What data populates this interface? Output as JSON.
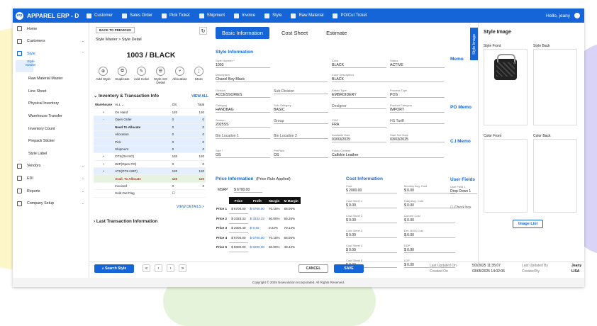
{
  "app": {
    "name": "APPAREL ERP",
    "env": "D",
    "logo": "erp",
    "user": "Hello, jeany"
  },
  "nav": [
    "Customer",
    "Sales Order",
    "Pick Ticket",
    "Shipment",
    "Invoice",
    "Style",
    "Raw Material",
    "PO/Cut Ticket"
  ],
  "sidebar": {
    "home": "Home",
    "customers": "Customers",
    "style": "Style",
    "style_items": [
      "Style Master",
      "Raw Material Master",
      "Line Sheet",
      "Physical Inventory",
      "Warehouse Transfer",
      "Inventory Count",
      "Prepack Sticker",
      "Style Label"
    ],
    "vendors": "Vendors",
    "edi": "EDI",
    "reports": "Reports",
    "company": "Company Setup"
  },
  "detail": {
    "back": "BACK TO PREVIOUS",
    "breadcrumb": "Style Master > Style Detail",
    "title": "1003 / BLACK",
    "actions": [
      "Add Style",
      "Duplicate",
      "Add Color",
      "Style SO Detail",
      "Allocation",
      "More"
    ],
    "inv_title": "Inventory & Transaction Info",
    "view_all": "VIEW ALL",
    "inv_head": {
      "wh": "Warehouse",
      "all": "ALL",
      "os": "OS",
      "total": "Total"
    },
    "inv_rows": [
      [
        "+",
        "On Hand",
        "120",
        "120"
      ],
      [
        "-",
        "Open Order",
        "0",
        "0"
      ],
      [
        "",
        "Need To Allocate",
        "0",
        "0"
      ],
      [
        "",
        "Allocation",
        "0",
        "0"
      ],
      [
        "",
        "Pick",
        "0",
        "0"
      ],
      [
        "",
        "Shipment",
        "0",
        "0"
      ],
      [
        "+",
        "OTS(OH-SO)",
        "120",
        "120"
      ],
      [
        "+",
        "WIP(Open PO)",
        "0",
        "0"
      ],
      [
        "+",
        "ATS(OTS+WIP)",
        "120",
        "120"
      ],
      [
        "",
        "Avail. To Allocate",
        "120",
        "120"
      ],
      [
        "",
        "Invoiced",
        "0",
        "0"
      ],
      [
        "",
        "Sold Out Flag",
        "",
        ""
      ]
    ],
    "view_details": "VIEW DETAILS >",
    "last_tx": "Last Transaction Information"
  },
  "tabs": [
    "Basic Information",
    "Cost Sheet",
    "Estimate"
  ],
  "style_info": {
    "title": "Style Information",
    "fields": [
      [
        "Style Number *",
        "1003"
      ],
      [
        "Color",
        "BLACK"
      ],
      [
        "Status",
        "ACTIVE"
      ],
      [
        "Description",
        "Chanel Boy Black"
      ],
      [
        "Color Description",
        "BLACK"
      ],
      [
        "Division",
        "ACCESSORIES"
      ],
      [
        "",
        "Sub-Division"
      ],
      [
        "Fabric Type",
        "EMBROIDERY"
      ],
      [
        "Process Type",
        "POS"
      ],
      [
        "Category",
        "HANDBAG"
      ],
      [
        "Sub-Category",
        "BASIC"
      ],
      [
        "",
        "Designer"
      ],
      [
        "Product Category",
        "IMPORT"
      ],
      [
        "Season",
        "2025SS"
      ],
      [
        "",
        "Group"
      ],
      [
        "COO",
        "FRA"
      ],
      [
        "",
        "HS Tariff"
      ],
      [
        "",
        "Bin Location 1"
      ],
      [
        "",
        "Bin Location 2"
      ],
      [
        "Available Date",
        "03/03/2025"
      ],
      [
        "Start Sell Date",
        "03/03/2025"
      ],
      [
        "Size *",
        "OS"
      ],
      [
        "PrePack",
        "OS"
      ],
      [
        "Fabric Content",
        "Calfskin Leather"
      ]
    ]
  },
  "price": {
    "title": "Price Information",
    "rule": "(Price Rule Applied)",
    "msrp_label": "MSRP",
    "msrp": "$ 6700.00",
    "head": [
      "",
      "Price",
      "Profit",
      "Margin",
      "M Margin"
    ],
    "rows": [
      [
        "Price 1",
        "$ 6700.00",
        "$ 6700.00",
        "70.15%",
        "66.05%"
      ],
      [
        "Price 2",
        "$ 3333.33",
        "$ 3333.33",
        "50.00%",
        "55.25%"
      ],
      [
        "Price 3",
        "$ 2000.40",
        "$ 9.40",
        "0.22%",
        "70.14%"
      ],
      [
        "Price 4",
        "$ 6700.00",
        "$ 6700.00",
        "70.15%",
        "66.05%"
      ],
      [
        "Price 5",
        "$ 5000.00",
        "$ 5000.00",
        "60.00%",
        "48.42%"
      ]
    ]
  },
  "cost": {
    "title": "Cost Information",
    "fields": [
      [
        "Cost",
        "$ 2000.00"
      ],
      [
        "Monthly Avg. Cost",
        "$ 0.00"
      ],
      [
        "Cost Sheet 1",
        "$ 0.00"
      ],
      [
        "Daily Avg. Cost",
        "$ 0.00"
      ],
      [
        "Cost Sheet 2",
        "$ 0.00"
      ],
      [
        "Current Cost",
        "$ 0.00"
      ],
      [
        "Cost Sheet 3",
        "$ 0.00"
      ],
      [
        "Def. BOM Cost",
        "$ 0.00"
      ],
      [
        "Cost Sheet 4",
        "$ 0.00"
      ],
      [
        "DDP",
        "$ 0.00"
      ],
      [
        "Cost Sheet 5",
        "$ 0.00"
      ],
      [
        "LDP",
        "$ 0.00"
      ]
    ]
  },
  "right_col": {
    "memo": "Memo",
    "po_memo": "PO Memo",
    "ci_memo": "C.I Memo",
    "user_fields": "User Fields",
    "uf1_label": "User Field 1",
    "uf1": "Drop Down 1",
    "check": "Check box"
  },
  "images": {
    "tab": "Style Image",
    "title": "Style Image",
    "front": "Style Front",
    "back": "Style Back",
    "color_front": "Color Front",
    "color_back": "Color Back",
    "list": "Image List"
  },
  "footer": {
    "search": "Search Style",
    "cancel": "CANCEL",
    "save": "SAVE",
    "updated_on_l": "Last Updated On",
    "updated_on": "5/3/2025 11:35:07",
    "created_on_l": "Created On",
    "created_on": "03/05/2025 14:02:06",
    "updated_by_l": "Last Updated By",
    "updated_by": "Jeany",
    "created_by_l": "Created By",
    "created_by": "LISA",
    "copyright": "Copyright © 2025 Nowvolution Incorporated. All Rights Reserved."
  }
}
